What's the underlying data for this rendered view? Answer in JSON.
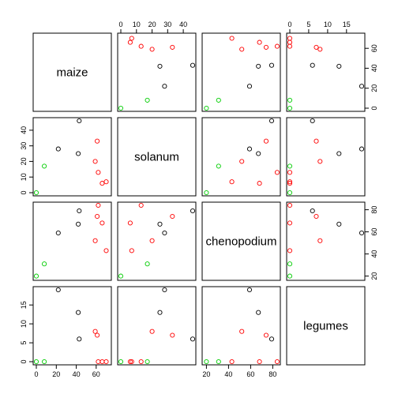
{
  "chart_data": {
    "type": "scatter",
    "subtype": "scatterplot-matrix",
    "variables": [
      "maize",
      "solanum",
      "chenopodium",
      "legumes"
    ],
    "ranges": {
      "maize": [
        0,
        72
      ],
      "solanum": [
        0,
        46
      ],
      "chenopodium": [
        19,
        84
      ],
      "legumes": [
        0,
        19
      ]
    },
    "ticks": {
      "maize": [
        0,
        20,
        40,
        60
      ],
      "solanum": [
        0,
        10,
        20,
        30,
        40
      ],
      "chenopodium": [
        20,
        40,
        60,
        80
      ],
      "legumes": [
        0,
        5,
        10,
        15
      ]
    },
    "colors": {
      "black": "#000000",
      "red": "#ff0000",
      "green": "#00cd00"
    },
    "points": [
      {
        "maize": 43,
        "solanum": 46,
        "chenopodium": 79,
        "legumes": 6,
        "color": "black"
      },
      {
        "maize": 22,
        "solanum": 28,
        "chenopodium": 59,
        "legumes": 19,
        "color": "black"
      },
      {
        "maize": 42,
        "solanum": 25,
        "chenopodium": 67,
        "legumes": 13,
        "color": "black"
      },
      {
        "maize": 61,
        "solanum": 33,
        "chenopodium": 74,
        "legumes": 7,
        "color": "red"
      },
      {
        "maize": 59,
        "solanum": 20,
        "chenopodium": 52,
        "legumes": 8,
        "color": "red"
      },
      {
        "maize": 62,
        "solanum": 13,
        "chenopodium": 84,
        "legumes": 0,
        "color": "red"
      },
      {
        "maize": 66,
        "solanum": 6,
        "chenopodium": 68,
        "legumes": 0,
        "color": "red"
      },
      {
        "maize": 70,
        "solanum": 7,
        "chenopodium": 43,
        "legumes": 0,
        "color": "red"
      },
      {
        "maize": 8,
        "solanum": 17,
        "chenopodium": 31,
        "legumes": 0,
        "color": "green"
      },
      {
        "maize": 0,
        "solanum": 0,
        "chenopodium": 20,
        "legumes": 0,
        "color": "green"
      }
    ]
  }
}
